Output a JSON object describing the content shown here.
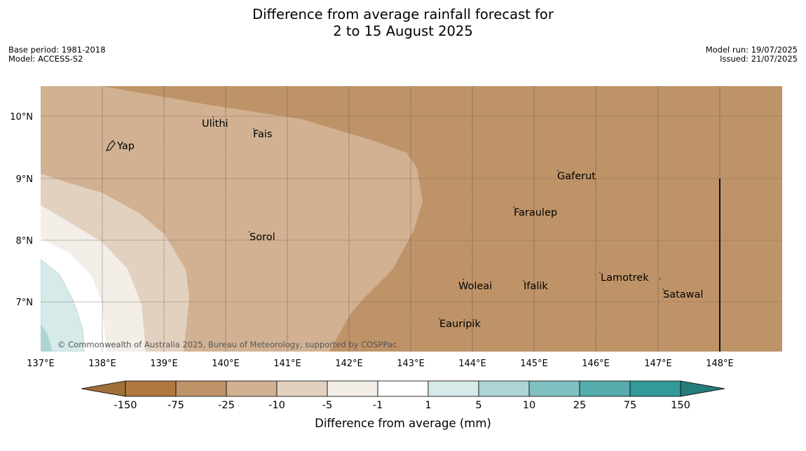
{
  "header": {
    "title_line1": "Difference from average rainfall forecast for",
    "title_line2": "2 to 15 August 2025",
    "base_period": "Base period: 1981-2018",
    "model": "Model: ACCESS-S2",
    "model_run": "Model run: 19/07/2025",
    "issued": "Issued: 21/07/2025"
  },
  "map": {
    "lon_ticks": [
      "137°E",
      "138°E",
      "139°E",
      "140°E",
      "141°E",
      "142°E",
      "143°E",
      "144°E",
      "145°E",
      "146°E",
      "147°E",
      "148°E"
    ],
    "lat_ticks": [
      "10°N",
      "9°N",
      "8°N",
      "7°N"
    ],
    "places": [
      {
        "name": "Ulithi"
      },
      {
        "name": "Fais"
      },
      {
        "name": "Yap"
      },
      {
        "name": "Gaferut"
      },
      {
        "name": "Faraulep"
      },
      {
        "name": "Sorol"
      },
      {
        "name": "Woleai"
      },
      {
        "name": "Ifalik"
      },
      {
        "name": "Lamotrek"
      },
      {
        "name": "Satawal"
      },
      {
        "name": "Eauripik"
      }
    ],
    "copyright": "© Commonwealth of Australia 2025, Bureau of Meteorology, supported by COSPPac"
  },
  "colorbar": {
    "labels": [
      "-150",
      "-75",
      "-25",
      "-10",
      "-5",
      "-1",
      "1",
      "5",
      "10",
      "25",
      "75",
      "150"
    ],
    "colors": [
      "#a0703a",
      "#b07840",
      "#bf9368",
      "#d1b192",
      "#e3d1c0",
      "#f3eee8",
      "#ffffff",
      "#d6eaea",
      "#add5d6",
      "#80c0c1",
      "#56abac",
      "#339999",
      "#267b7b"
    ],
    "title": "Difference from average (mm)"
  }
}
